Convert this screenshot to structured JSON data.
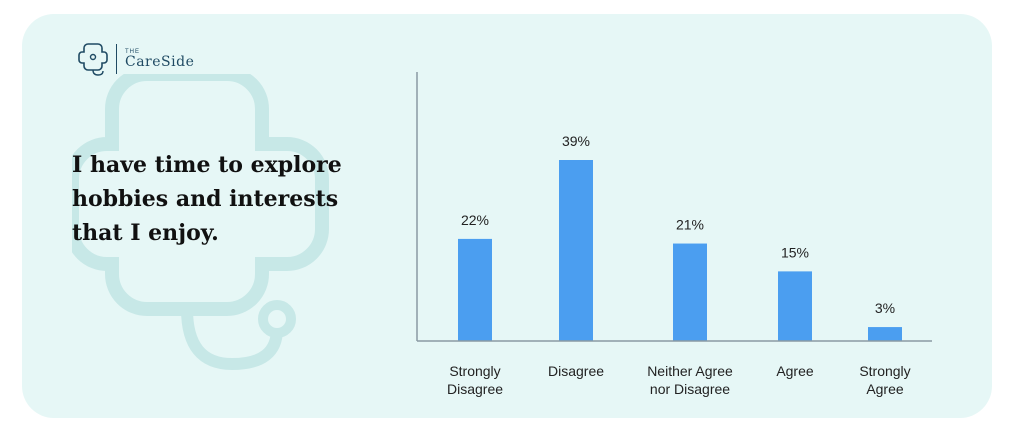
{
  "brand": {
    "small": "THE",
    "name": "CareSide"
  },
  "headline": "I have time to explore hobbies and interests that I enjoy.",
  "colors": {
    "bar": "#4b9ef0",
    "background": "#e6f7f6",
    "axis": "#8a9aa3",
    "watermark": "#c7e8e7"
  },
  "chart_data": {
    "type": "bar",
    "title": "",
    "xlabel": "",
    "ylabel": "",
    "categories": [
      [
        "Strongly",
        "Disagree"
      ],
      [
        "Disagree"
      ],
      [
        "Neither Agree",
        "nor Disagree"
      ],
      [
        "Agree"
      ],
      [
        "Strongly",
        "Agree"
      ]
    ],
    "values": [
      22,
      39,
      21,
      15,
      3
    ],
    "data_labels": [
      "22%",
      "39%",
      "21%",
      "15%",
      "3%"
    ],
    "ylim": [
      0,
      45
    ],
    "grid": false
  }
}
